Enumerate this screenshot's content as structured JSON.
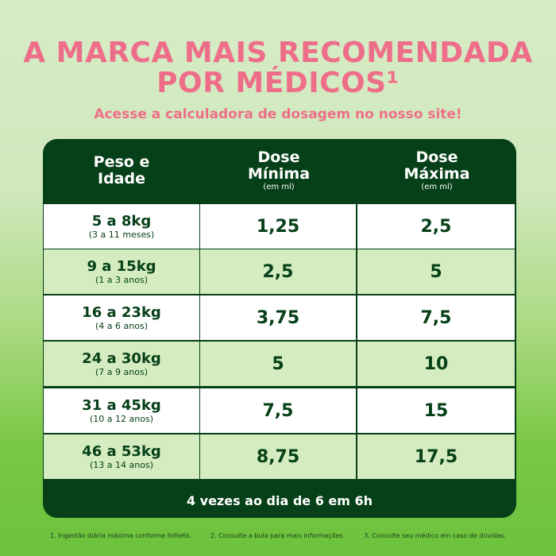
{
  "header": {
    "title_line1": "A MARCA MAIS RECOMENDADA",
    "title_line2": "POR MÉDICOS¹",
    "subtitle": "Acesse a calculadora de dosagem no nosso site!"
  },
  "table": {
    "columns": [
      {
        "line1": "Peso e",
        "line2": "Idade",
        "unit": ""
      },
      {
        "line1": "Dose",
        "line2": "Mínima",
        "unit": "(em ml)"
      },
      {
        "line1": "Dose",
        "line2": "Máxima",
        "unit": "(em ml)"
      }
    ],
    "rows": [
      {
        "weight": "5 a 8kg",
        "age": "(3 a 11 meses)",
        "min": "1,25",
        "max": "2,5"
      },
      {
        "weight": "9 a 15kg",
        "age": "(1 a 3 anos)",
        "min": "2,5",
        "max": "5"
      },
      {
        "weight": "16 a 23kg",
        "age": "(4 a 6 anos)",
        "min": "3,75",
        "max": "7,5"
      },
      {
        "weight": "24 a 30kg",
        "age": "(7 a 9 anos)",
        "min": "5",
        "max": "10"
      },
      {
        "weight": "31 a 45kg",
        "age": "(10 a 12 anos)",
        "min": "7,5",
        "max": "15"
      },
      {
        "weight": "46 a 53kg",
        "age": "(13 a 14 anos)",
        "min": "8,75",
        "max": "17,5"
      }
    ],
    "footer": "4 vezes ao dia de 6 em 6h"
  },
  "notes": [
    "1.  Ingestão diária máxima conforme folheto.",
    "2.  Consulte a bula para mais informações.",
    "3.  Consulte seu médico em caso de dúvidas."
  ],
  "colors": {
    "title": "#ee6e8a",
    "table_dark": "#064018",
    "row_white": "#ffffff",
    "row_green": "#d4ecbf"
  }
}
